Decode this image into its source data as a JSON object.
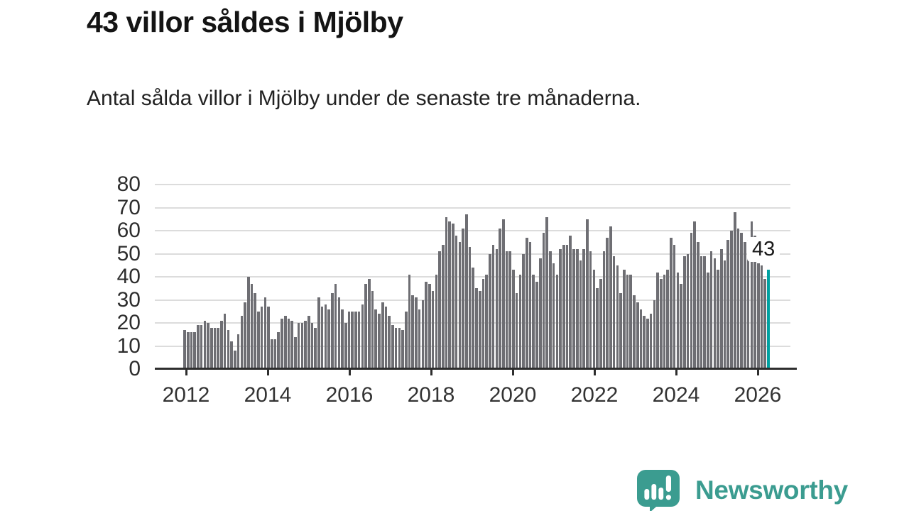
{
  "header": {
    "title": "43 villor såldes i Mjölby",
    "subtitle": "Antal sålda villor i Mjölby under de senaste tre månaderna."
  },
  "annotation": {
    "value_label": "43"
  },
  "branding": {
    "logo_text": "Newsworthy",
    "logo_icon": "newsworthy-speech-bubble-chart-icon",
    "brand_color": "#3b9c90"
  },
  "colors": {
    "bar": "#6e6e73",
    "bar_highlight": "#00a1a1",
    "grid": "#dcdcdc",
    "axis": "#2e2e2e",
    "title_text": "#141414",
    "body_text": "#222222",
    "tick_text": "#333333",
    "annotation_bg": "#ffffff"
  },
  "chart_data": {
    "type": "bar",
    "title": "43 villor såldes i Mjölby",
    "subtitle": "Antal sålda villor i Mjölby under de senaste tre månaderna.",
    "ylabel": "",
    "xlabel": "",
    "ylim": [
      0,
      80
    ],
    "y_ticks": [
      0,
      10,
      20,
      30,
      40,
      50,
      60,
      70,
      80
    ],
    "grid": "horizontal",
    "legend": false,
    "x_axis": {
      "tick_labels": [
        "2012",
        "2014",
        "2016",
        "2018",
        "2020",
        "2022",
        "2024",
        "2026"
      ],
      "cadence": "monthly",
      "start": "2012"
    },
    "highlight_last": true,
    "last_value": 43,
    "values": [
      17,
      16,
      16,
      16,
      19,
      19,
      21,
      20,
      18,
      18,
      18,
      21,
      24,
      17,
      12,
      8,
      15,
      23,
      29,
      40,
      37,
      33,
      25,
      27,
      31,
      27,
      13,
      13,
      16,
      22,
      23,
      22,
      21,
      14,
      20,
      20,
      21,
      23,
      20,
      18,
      31,
      27,
      28,
      26,
      33,
      37,
      31,
      26,
      20,
      25,
      25,
      25,
      25,
      28,
      37,
      39,
      34,
      26,
      24,
      29,
      27,
      23,
      19,
      18,
      18,
      17,
      25,
      41,
      32,
      31,
      26,
      30,
      38,
      37,
      34,
      41,
      51,
      54,
      66,
      64,
      63,
      58,
      55,
      61,
      67,
      53,
      44,
      35,
      34,
      39,
      41,
      50,
      54,
      52,
      61,
      65,
      51,
      51,
      43,
      33,
      41,
      50,
      57,
      55,
      41,
      38,
      48,
      59,
      66,
      51,
      46,
      41,
      52,
      54,
      54,
      58,
      52,
      52,
      47,
      52,
      65,
      51,
      43,
      35,
      39,
      51,
      57,
      62,
      49,
      45,
      33,
      43,
      41,
      41,
      32,
      29,
      26,
      23,
      22,
      24,
      30,
      42,
      39,
      41,
      43,
      57,
      54,
      42,
      37,
      49,
      50,
      59,
      64,
      55,
      49,
      49,
      42,
      51,
      48,
      43,
      52,
      47,
      56,
      60,
      68,
      61,
      59,
      55,
      56,
      64,
      58,
      46,
      45,
      39,
      43
    ]
  }
}
